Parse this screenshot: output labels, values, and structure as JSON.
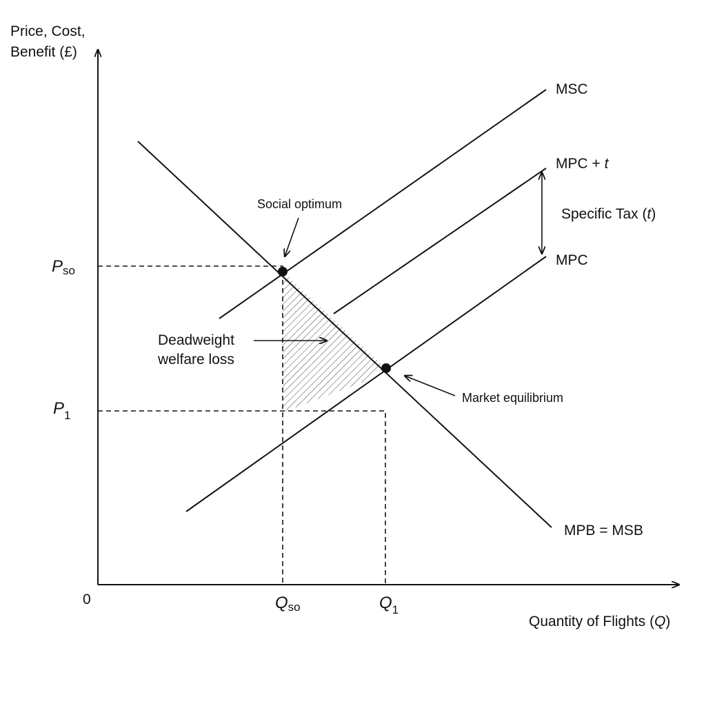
{
  "axes": {
    "y_label": [
      "Price, Cost,",
      "Benefit (£)"
    ],
    "origin": "0",
    "x_label": {
      "text": "Quantity of Flights (",
      "var": "Q",
      "close": ")"
    }
  },
  "curves": {
    "msc": "MSC",
    "mpc_t": {
      "text": "MPC + ",
      "var": "t"
    },
    "mpc": "MPC",
    "demand": "MPB = MSB"
  },
  "tax": {
    "text": "Specific Tax (",
    "var": "t",
    "close": ")"
  },
  "annotations": {
    "social_optimum": "Social optimum",
    "deadweight": [
      "Deadweight",
      "welfare loss"
    ],
    "market_equilibrium": "Market equilibrium"
  },
  "points": {
    "p_so": {
      "symbol": "P",
      "sub": "so"
    },
    "p1": {
      "symbol": "P",
      "sub": "1"
    },
    "q_so": {
      "symbol": "Q",
      "sub": "so"
    },
    "q1": {
      "symbol": "Q",
      "sub": "1"
    }
  }
}
